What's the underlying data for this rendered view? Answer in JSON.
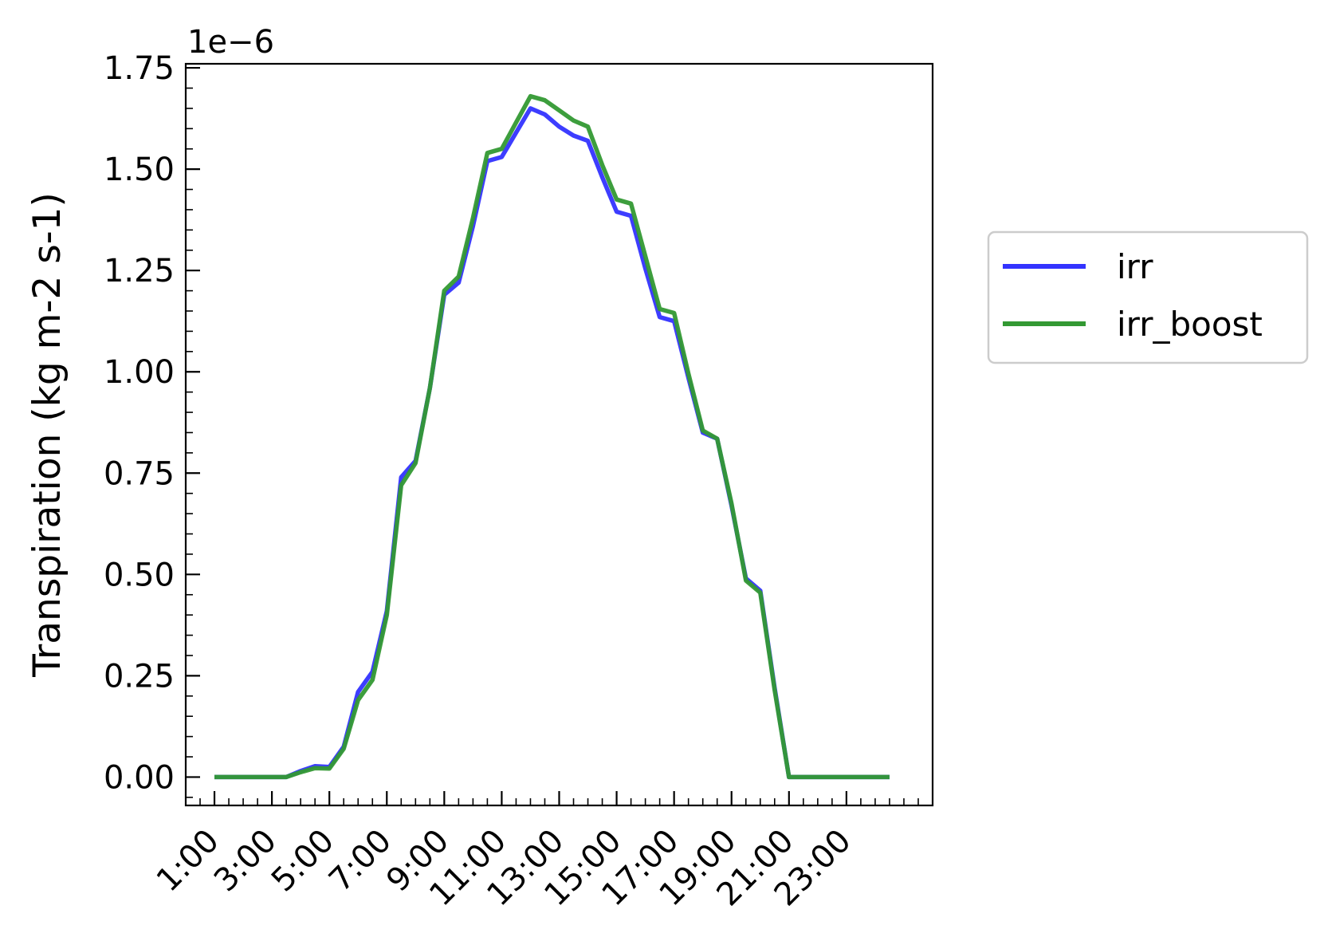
{
  "chart_data": {
    "type": "line",
    "title": "",
    "xlabel": "",
    "ylabel": "Transpiration (kg m-2 s-1)",
    "y_offset_label": "1e−6",
    "y_scale_note": "values in units of 1e-6",
    "ylim": [
      -0.07,
      1.76
    ],
    "xlim": [
      0.0,
      26.0
    ],
    "x_tick_positions": [
      1,
      3,
      5,
      7,
      9,
      11,
      13,
      15,
      17,
      19,
      21,
      23
    ],
    "x_tick_labels": [
      "1:00",
      "3:00",
      "5:00",
      "7:00",
      "9:00",
      "11:00",
      "13:00",
      "15:00",
      "17:00",
      "19:00",
      "21:00",
      "23:00"
    ],
    "y_ticks": [
      0.0,
      0.25,
      0.5,
      0.75,
      1.0,
      1.25,
      1.5,
      1.75
    ],
    "y_tick_labels": [
      "0.00",
      "0.25",
      "0.50",
      "0.75",
      "1.00",
      "1.25",
      "1.50",
      "1.75"
    ],
    "grid": false,
    "legend_position": "outside-right",
    "x": [
      1.0,
      1.5,
      2.0,
      2.5,
      3.0,
      3.5,
      4.0,
      4.5,
      5.0,
      5.5,
      6.0,
      6.5,
      7.0,
      7.5,
      8.0,
      8.5,
      9.0,
      9.5,
      10.0,
      10.5,
      11.0,
      11.5,
      12.0,
      12.5,
      13.0,
      13.5,
      14.0,
      14.5,
      15.0,
      15.5,
      16.0,
      16.5,
      17.0,
      17.5,
      18.0,
      18.5,
      19.0,
      19.5,
      20.0,
      20.5,
      21.0,
      21.5,
      22.0,
      22.5,
      23.0,
      23.5,
      24.0,
      24.5
    ],
    "series": [
      {
        "name": "irr",
        "color": "#3333ff",
        "values": [
          0.0,
          0.0,
          0.0,
          0.0,
          0.0,
          0.0,
          0.015,
          0.027,
          0.025,
          0.075,
          0.21,
          0.26,
          0.41,
          0.74,
          0.78,
          0.96,
          1.19,
          1.22,
          1.36,
          1.52,
          1.53,
          1.59,
          1.65,
          1.635,
          1.605,
          1.583,
          1.57,
          1.48,
          1.395,
          1.385,
          1.255,
          1.135,
          1.125,
          0.985,
          0.85,
          0.835,
          0.67,
          0.49,
          0.46,
          0.22,
          0.0,
          0.0,
          0.0,
          0.0,
          0.0,
          0.0,
          0.0,
          0.0
        ]
      },
      {
        "name": "irr_boost",
        "color": "#339933",
        "values": [
          0.0,
          0.0,
          0.0,
          0.0,
          0.0,
          0.0,
          0.012,
          0.022,
          0.021,
          0.07,
          0.19,
          0.24,
          0.4,
          0.72,
          0.775,
          0.96,
          1.2,
          1.235,
          1.38,
          1.54,
          1.55,
          1.615,
          1.68,
          1.67,
          1.645,
          1.62,
          1.605,
          1.51,
          1.425,
          1.415,
          1.285,
          1.155,
          1.145,
          0.995,
          0.855,
          0.835,
          0.675,
          0.485,
          0.455,
          0.215,
          0.0,
          0.0,
          0.0,
          0.0,
          0.0,
          0.0,
          0.0,
          0.0
        ]
      }
    ]
  }
}
